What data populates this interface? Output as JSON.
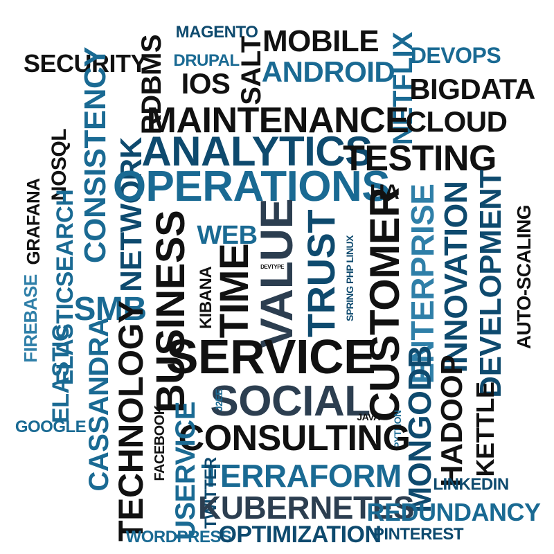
{
  "colors": {
    "dark": "#111111",
    "blue1": "#0e4a6e",
    "blue2": "#1a6a93",
    "blue3": "#2f7fa8",
    "slate": "#2c3e50",
    "ink": "#0b1d2b"
  },
  "words": {
    "magento": "MAGENTO",
    "mobile": "MOBILE",
    "netflix": "NETFLIX",
    "devops": "DEVOPS",
    "security": "SECURITY",
    "rdbms": "RDBMS",
    "drupal": "DRUPAL",
    "salt": "SALT",
    "android": "ANDROID",
    "ios": "IOS",
    "bigdata": "BIGDATA",
    "consistency": "CONSISTENCY",
    "nosql": "NoSQL",
    "maintenance": "MAINTENANCE",
    "cloud": "CLOUD",
    "analytics": "ANALYTICS",
    "testing": "TESTING",
    "grafana": "GRAFANA",
    "network": "NETWORK",
    "operations": "OPERATIONS",
    "ha": "HA",
    "web": "WEB",
    "value": "VALUE",
    "trust": "TRUST",
    "customer": "CUSTOMER",
    "enterprise": "ENTERPRISE",
    "innovation": "INNOVATION",
    "development": "DEVELOPMENT",
    "autoscaling": "AUTO-SCALING",
    "elasticsearch": "ELASTICSEARCH",
    "firebase": "FIREBASE",
    "business": "BUSINESS",
    "kibana": "KIBANA",
    "time": "TIME",
    "devtype": "DEVTYPE",
    "spring": "SPRING",
    "php": "PHP",
    "linux": "LINUX",
    "smb": "SMB",
    "technology": "TECHNOLOGY",
    "service": "SERVICE",
    "elastic": "ELASTIC",
    "cassandra": "CASSANDRA",
    "social": "SOCIAL",
    "j2ee": "J2EE",
    "mongodb": "MONGODB",
    "hadoop": "HADOOP",
    "java": "JAVA",
    "python": "PYTHON",
    "kettle": "KETTLE",
    "google": "GOOGLE",
    "facebook": "FACEBOOK",
    "consulting": "CONSULTING",
    "userservice": "USERVICE",
    "terraform": "TERRAFORM",
    "twitter": "TWITTER",
    "kubernetes": "KUBERNETES",
    "linkedin": "LINKEDIN",
    "redundancy": "REDUNDANCY",
    "wordpress": "WORDPRESS",
    "optimization": "OPTIMIZATION",
    "pinterest": "PINTEREST"
  }
}
